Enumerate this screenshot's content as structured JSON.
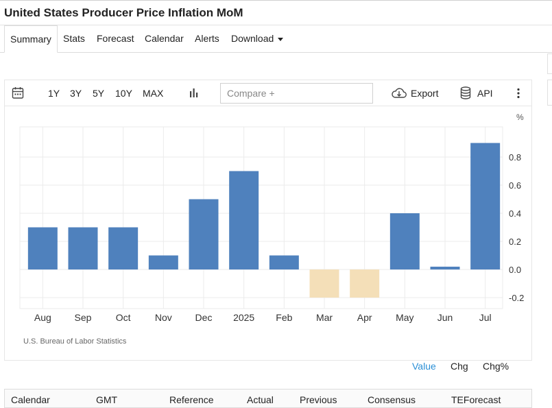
{
  "page": {
    "title": "United States Producer Price Inflation MoM"
  },
  "tabs": [
    {
      "label": "Summary",
      "active": true
    },
    {
      "label": "Stats"
    },
    {
      "label": "Forecast"
    },
    {
      "label": "Calendar"
    },
    {
      "label": "Alerts"
    },
    {
      "label": "Download"
    }
  ],
  "toolbar": {
    "ranges": [
      "1Y",
      "3Y",
      "5Y",
      "10Y",
      "MAX"
    ],
    "compare_placeholder": "Compare +",
    "export_label": "Export",
    "api_label": "API"
  },
  "chart_data": {
    "type": "bar",
    "categories": [
      "Aug",
      "Sep",
      "Oct",
      "Nov",
      "Dec",
      "2025",
      "Feb",
      "Mar",
      "Apr",
      "May",
      "Jun",
      "Jul"
    ],
    "values": [
      0.3,
      0.3,
      0.3,
      0.1,
      0.5,
      0.7,
      0.1,
      -0.2,
      -0.2,
      0.4,
      0.02,
      0.9
    ],
    "unit": "%",
    "ylim": [
      -0.2,
      0.9
    ],
    "yticks": [
      0.8,
      0.6,
      0.4,
      0.2,
      0.0,
      -0.2
    ],
    "ytick_labels": [
      "0.8",
      "0.6",
      "0.4",
      "0.2",
      "0.0",
      "-0.2"
    ],
    "colors": {
      "positive": "#4f81bd",
      "negative": "#f4dfb8",
      "grid": "#ebebeb"
    },
    "grid": true,
    "source": "U.S. Bureau of Labor Statistics"
  },
  "modes": [
    {
      "label": "Value",
      "active": true
    },
    {
      "label": "Chg"
    },
    {
      "label": "Chg%"
    }
  ],
  "calendar_table": {
    "columns": [
      "Calendar",
      "GMT",
      "Reference",
      "Actual",
      "Previous",
      "Consensus",
      "TEForecast"
    ]
  }
}
